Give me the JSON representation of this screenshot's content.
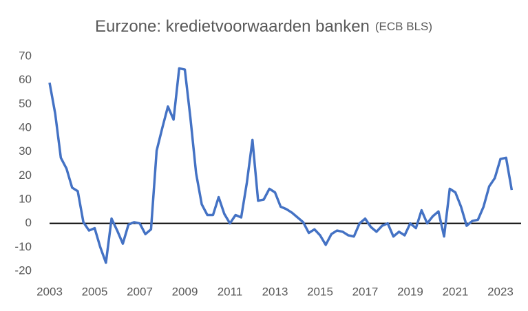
{
  "chart_data": {
    "type": "line",
    "title": "Eurzone: kredietvoorwaarden banken",
    "subtitle": "(ECB BLS)",
    "x": [
      2003,
      2003.25,
      2003.5,
      2003.75,
      2004,
      2004.25,
      2004.5,
      2004.75,
      2005,
      2005.25,
      2005.5,
      2005.75,
      2006,
      2006.25,
      2006.5,
      2006.75,
      2007,
      2007.25,
      2007.5,
      2007.75,
      2008,
      2008.25,
      2008.5,
      2008.75,
      2009,
      2009.25,
      2009.5,
      2009.75,
      2010,
      2010.25,
      2010.5,
      2010.75,
      2011,
      2011.25,
      2011.5,
      2011.75,
      2012,
      2012.25,
      2012.5,
      2012.75,
      2013,
      2013.25,
      2013.5,
      2013.75,
      2014,
      2014.25,
      2014.5,
      2014.75,
      2015,
      2015.25,
      2015.5,
      2015.75,
      2016,
      2016.25,
      2016.5,
      2016.75,
      2017,
      2017.25,
      2017.5,
      2017.75,
      2018,
      2018.25,
      2018.5,
      2018.75,
      2019,
      2019.25,
      2019.5,
      2019.75,
      2020,
      2020.25,
      2020.5,
      2020.75,
      2021,
      2021.25,
      2021.5,
      2021.75,
      2022,
      2022.25,
      2022.5,
      2022.75,
      2023,
      2023.25,
      2023.5
    ],
    "values": [
      59,
      46,
      27.5,
      23,
      15,
      13.5,
      0.5,
      -3,
      -2,
      -10,
      -16.5,
      2,
      -3,
      -8.5,
      -0.5,
      0.5,
      0,
      -4.5,
      -2.5,
      30.5,
      40,
      49,
      43.5,
      65,
      64.5,
      44,
      21,
      8,
      3.5,
      3.5,
      11,
      4,
      0,
      3.5,
      2.5,
      17,
      35,
      9.5,
      10,
      14.5,
      13,
      7,
      6,
      4.5,
      2.5,
      0.5,
      -4,
      -2.5,
      -5,
      -9,
      -4.5,
      -3,
      -3.5,
      -5,
      -5.5,
      0,
      2,
      -1.5,
      -3.5,
      -1,
      0,
      -5.5,
      -3.5,
      -5,
      0,
      -2,
      5.5,
      0,
      3,
      5,
      -5.5,
      14.5,
      13,
      7,
      -1,
      1,
      1.5,
      7,
      15.5,
      19,
      27,
      27.5,
      14
    ],
    "color": "#4472c4",
    "xlim": [
      2003,
      2023.55
    ],
    "xticks": [
      2003,
      2005,
      2007,
      2009,
      2011,
      2013,
      2015,
      2017,
      2019,
      2021,
      2023
    ],
    "ylim": [
      -20,
      70
    ],
    "yticks": [
      -20,
      -10,
      0,
      10,
      20,
      30,
      40,
      50,
      60,
      70
    ],
    "zero_line": true
  }
}
